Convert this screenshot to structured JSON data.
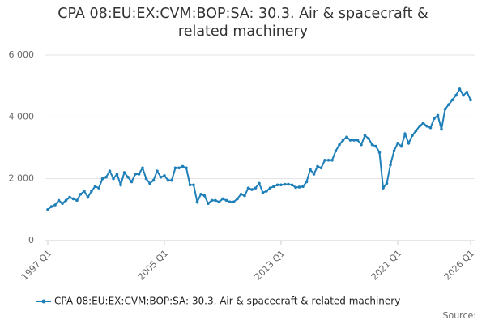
{
  "chart_data": {
    "type": "line",
    "title": "CPA 08:EU:EX:CVM:BOP:SA: 30.3. Air & spacecraft & related machinery",
    "source": "Source:",
    "categories": [
      "1997 Q1",
      null,
      null,
      null,
      null,
      null,
      null,
      null,
      null,
      null,
      null,
      null,
      null,
      null,
      null,
      null,
      null,
      null,
      null,
      null,
      null,
      null,
      null,
      null,
      null,
      null,
      null,
      null,
      null,
      null,
      null,
      null,
      "2005 Q1",
      null,
      null,
      null,
      null,
      null,
      null,
      null,
      null,
      null,
      null,
      null,
      null,
      null,
      null,
      null,
      null,
      null,
      null,
      null,
      null,
      null,
      null,
      null,
      null,
      null,
      null,
      null,
      null,
      null,
      null,
      null,
      "2013 Q1",
      null,
      null,
      null,
      null,
      null,
      null,
      null,
      null,
      null,
      null,
      null,
      null,
      null,
      null,
      null,
      null,
      null,
      null,
      null,
      null,
      null,
      null,
      null,
      null,
      null,
      null,
      null,
      null,
      null,
      null,
      null,
      "2021 Q1",
      null,
      null,
      null,
      null,
      null,
      null,
      null,
      null,
      null,
      null,
      null,
      null,
      null,
      null,
      null,
      null,
      null,
      null,
      null,
      "2026 Q1"
    ],
    "series": [
      {
        "name": "CPA 08:EU:EX:CVM:BOP:SA: 30.3. Air & spacecraft & related machinery",
        "color": "#1f7fb8",
        "values": [
          1000,
          1100,
          1150,
          1300,
          1200,
          1300,
          1400,
          1350,
          1300,
          1500,
          1600,
          1400,
          1600,
          1750,
          1700,
          2000,
          2050,
          2250,
          2000,
          2150,
          1800,
          2200,
          2050,
          1900,
          2150,
          2150,
          2350,
          2000,
          1850,
          1950,
          2250,
          2050,
          2100,
          1950,
          1950,
          2350,
          2350,
          2400,
          2350,
          1800,
          1800,
          1250,
          1500,
          1450,
          1200,
          1300,
          1300,
          1250,
          1350,
          1300,
          1250,
          1250,
          1350,
          1500,
          1450,
          1700,
          1650,
          1700,
          1850,
          1550,
          1600,
          1700,
          1750,
          1800,
          1800,
          1820,
          1820,
          1800,
          1720,
          1730,
          1750,
          1900,
          2300,
          2150,
          2400,
          2350,
          2600,
          2600,
          2600,
          2900,
          3100,
          3250,
          3350,
          3250,
          3250,
          3250,
          3100,
          3400,
          3300,
          3100,
          3050,
          2850,
          1700,
          1850,
          2450,
          2900,
          3150,
          3050,
          3450,
          3150,
          3400,
          3550,
          3700,
          3800,
          3700,
          3650,
          3950,
          4050,
          3600,
          4250,
          4400,
          4550,
          4700,
          4900,
          4700,
          4800,
          4550
        ]
      }
    ],
    "ylim": [
      0,
      6000
    ],
    "yticks": [
      0,
      {
        "value": 2000,
        "label": "2 000"
      },
      {
        "value": 4000,
        "label": "4 000"
      },
      {
        "value": 6000,
        "label": "6 000"
      }
    ],
    "grid": true,
    "legend": "bottom"
  }
}
